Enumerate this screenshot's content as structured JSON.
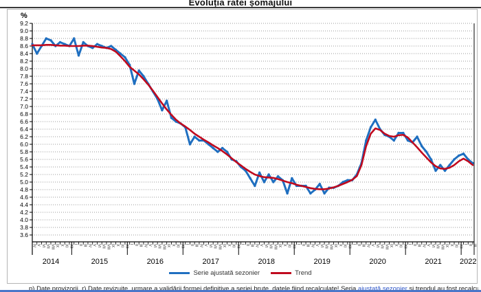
{
  "page": {
    "title": "Evoluția ratei șomajului",
    "y_axis_unit": "%"
  },
  "legend": [
    {
      "label": "Serie ajustată sezonier",
      "color": "#1f6fc0"
    },
    {
      "label": "Trend",
      "color": "#c00a1e"
    }
  ],
  "footer": {
    "note_left": "p) Date provizorii. r) Date revizuite, urmare a validării formei definitive a seriei brute, datele fiind recalculate! Seria ",
    "note_link": "ajustată sezonier",
    "note_right": " și trendul au fost recalculate."
  },
  "chart_data": {
    "type": "line",
    "title": "Evoluția ratei șomajului",
    "ylabel": "%",
    "ylim": [
      3.6,
      9.2
    ],
    "ytick_step": 0.2,
    "grid": "horizontal-dotted",
    "legend_position": "bottom",
    "x_range": "aprilie 2014 - martie 2022",
    "y_ticks": [
      "9.2",
      "9.0",
      "8.8",
      "8.6",
      "8.4",
      "8.2",
      "8.0",
      "7.8",
      "7.6",
      "7.4",
      "7.2",
      "7.0",
      "6.8",
      "6.6",
      "6.4",
      "6.2",
      "6.0",
      "5.8",
      "5.6",
      "5.4",
      "5.2",
      "5.0",
      "4.8",
      "4.6",
      "4.4",
      "4.2",
      "4.0",
      "3.8",
      "3.6"
    ],
    "year_sections": [
      {
        "label": "2014",
        "n": 9
      },
      {
        "label": "2015",
        "n": 12
      },
      {
        "label": "2016",
        "n": 12
      },
      {
        "label": "2017",
        "n": 12
      },
      {
        "label": "2018",
        "n": 12
      },
      {
        "label": "2019",
        "n": 12
      },
      {
        "label": "2020",
        "n": 12
      },
      {
        "label": "2021",
        "n": 12
      },
      {
        "label": "2022",
        "n": 3
      }
    ],
    "month_labels": [
      "IV",
      "V",
      "VI",
      "VII",
      "VIII",
      "IX",
      "X",
      "XI",
      "XII",
      "I",
      "II",
      "III",
      "IV",
      "V",
      "VI",
      "VII",
      "VIII",
      "IX",
      "X",
      "XI",
      "XII",
      "I",
      "II",
      "III",
      "IV",
      "V",
      "VI",
      "VII",
      "VIII",
      "IX",
      "X",
      "XI",
      "XII",
      "I",
      "II",
      "III",
      "IV",
      "V",
      "VI",
      "VII",
      "VIII",
      "IX",
      "X",
      "XI",
      "XII",
      "I",
      "II",
      "III",
      "IV",
      "V",
      "VI",
      "VII",
      "VIII",
      "IX",
      "X",
      "XI",
      "XII",
      "I",
      "II",
      "III",
      "IV",
      "V",
      "VI",
      "VII",
      "VIII",
      "IX",
      "X",
      "XI",
      "XII",
      "I",
      "II",
      "III",
      "IV",
      "V",
      "VI",
      "VII",
      "VIII",
      "IX",
      "X",
      "XI",
      "XII",
      "I",
      "II",
      "III",
      "IV",
      "V",
      "VI",
      "VII",
      "VIII",
      "IX",
      "X",
      "XI",
      "XII",
      "I",
      "II",
      "III"
    ],
    "series": [
      {
        "name": "Serie ajustată sezonier",
        "color": "#1f6fc0",
        "width": 3,
        "markers": true,
        "values": [
          8.65,
          8.4,
          8.6,
          8.8,
          8.75,
          8.6,
          8.7,
          8.65,
          8.6,
          8.8,
          8.35,
          8.7,
          8.6,
          8.55,
          8.65,
          8.6,
          8.55,
          8.6,
          8.5,
          8.4,
          8.3,
          8.1,
          7.6,
          7.95,
          7.8,
          7.6,
          7.4,
          7.2,
          6.9,
          7.15,
          6.7,
          6.6,
          6.55,
          6.45,
          6.0,
          6.2,
          6.1,
          6.1,
          6.0,
          5.9,
          5.8,
          5.9,
          5.8,
          5.6,
          5.55,
          5.4,
          5.3,
          5.1,
          4.9,
          5.25,
          5.0,
          5.2,
          5.0,
          5.15,
          5.05,
          4.7,
          5.1,
          4.9,
          4.9,
          4.9,
          4.7,
          4.8,
          4.95,
          4.7,
          4.85,
          4.85,
          4.9,
          5.0,
          5.05,
          5.05,
          5.2,
          5.5,
          6.1,
          6.45,
          6.65,
          6.4,
          6.25,
          6.2,
          6.1,
          6.3,
          6.3,
          6.1,
          6.05,
          6.2,
          5.95,
          5.8,
          5.6,
          5.3,
          5.45,
          5.3,
          5.45,
          5.6,
          5.7,
          5.75,
          5.6,
          5.5
        ]
      },
      {
        "name": "Trend",
        "color": "#c00a1e",
        "width": 2.6,
        "markers": false,
        "values": [
          8.62,
          8.62,
          8.62,
          8.63,
          8.63,
          8.62,
          8.61,
          8.61,
          8.6,
          8.6,
          8.6,
          8.61,
          8.61,
          8.6,
          8.58,
          8.56,
          8.55,
          8.52,
          8.45,
          8.33,
          8.2,
          8.05,
          7.95,
          7.85,
          7.72,
          7.58,
          7.42,
          7.25,
          7.08,
          6.92,
          6.78,
          6.65,
          6.55,
          6.47,
          6.38,
          6.28,
          6.2,
          6.12,
          6.05,
          5.97,
          5.9,
          5.82,
          5.73,
          5.63,
          5.53,
          5.44,
          5.35,
          5.27,
          5.2,
          5.16,
          5.13,
          5.12,
          5.11,
          5.08,
          5.04,
          5.0,
          4.97,
          4.93,
          4.9,
          4.87,
          4.84,
          4.82,
          4.81,
          4.81,
          4.83,
          4.86,
          4.9,
          4.95,
          5.0,
          5.06,
          5.16,
          5.45,
          5.95,
          6.28,
          6.42,
          6.38,
          6.28,
          6.22,
          6.2,
          6.24,
          6.25,
          6.18,
          6.05,
          5.92,
          5.78,
          5.65,
          5.52,
          5.42,
          5.36,
          5.35,
          5.38,
          5.45,
          5.55,
          5.62,
          5.55,
          5.45
        ]
      }
    ]
  }
}
